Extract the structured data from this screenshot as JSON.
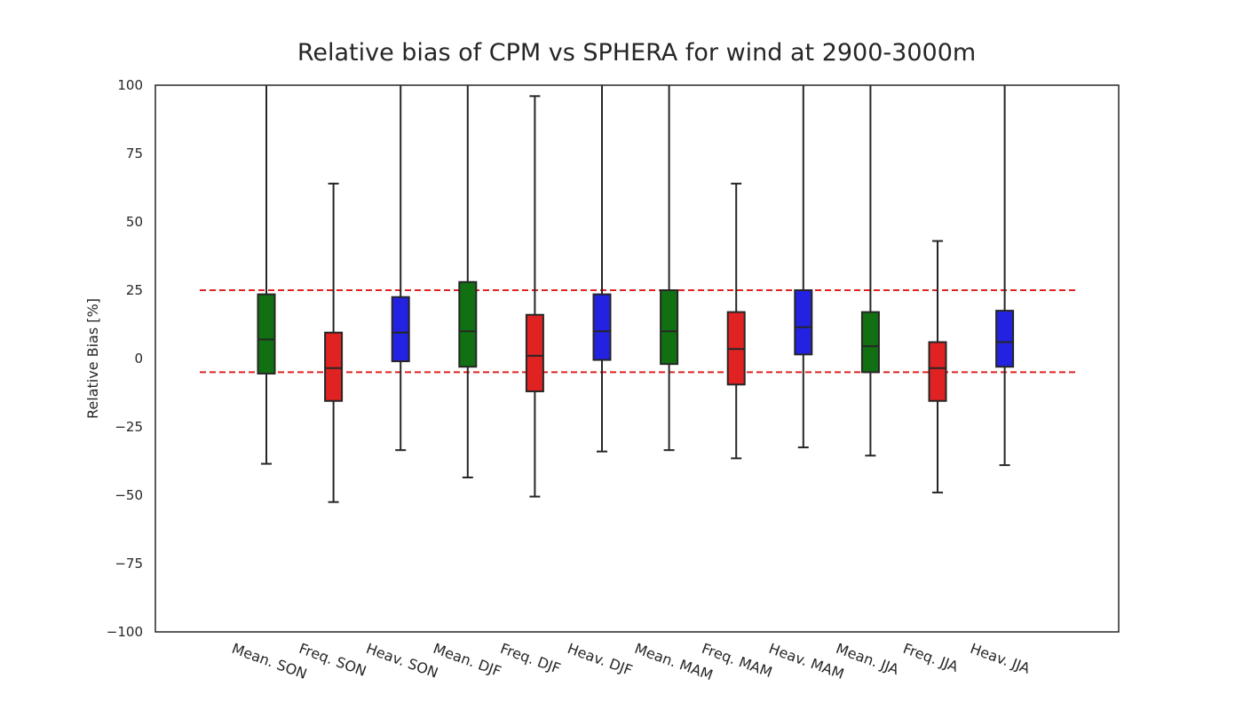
{
  "chart_data": {
    "type": "box",
    "title": "Relative bias of CPM vs SPHERA for wind at 2900-3000m",
    "xlabel": "",
    "ylabel": "Relative Bias [%]",
    "ylim": [
      -100,
      100
    ],
    "yticks": [
      100,
      75,
      50,
      25,
      0,
      -25,
      -50,
      -75,
      -100
    ],
    "ytick_labels": [
      "100",
      "75",
      "50",
      "25",
      "0",
      "−25",
      "−50",
      "−75",
      "−100"
    ],
    "grid": false,
    "categories": [
      "Mean. SON",
      "Freq. SON",
      "Heav. SON",
      "Mean. DJF",
      "Freq. DJF",
      "Heav. DJF",
      "Mean. MAM",
      "Freq. MAM",
      "Heav. MAM",
      "Mean. JJA",
      "Freq. JJA",
      "Heav. JJA"
    ],
    "box_colors": [
      "#117011",
      "#e02222",
      "#2222e0",
      "#117011",
      "#e02222",
      "#2222e0",
      "#117011",
      "#e02222",
      "#2222e0",
      "#117011",
      "#e02222",
      "#2222e0"
    ],
    "boxes": [
      {
        "whisker_low": -38.5,
        "q1": -5.5,
        "median": 7,
        "q3": 23.5,
        "whisker_high": 100
      },
      {
        "whisker_low": -52.5,
        "q1": -15.5,
        "median": -3.5,
        "q3": 9.5,
        "whisker_high": 64
      },
      {
        "whisker_low": -33.5,
        "q1": -1,
        "median": 9.5,
        "q3": 22.5,
        "whisker_high": 100
      },
      {
        "whisker_low": -43.5,
        "q1": -3,
        "median": 10,
        "q3": 28,
        "whisker_high": 100
      },
      {
        "whisker_low": -50.5,
        "q1": -12,
        "median": 1,
        "q3": 16,
        "whisker_high": 96
      },
      {
        "whisker_low": -34,
        "q1": -0.5,
        "median": 10,
        "q3": 23.5,
        "whisker_high": 100
      },
      {
        "whisker_low": -33.5,
        "q1": -2,
        "median": 10,
        "q3": 25,
        "whisker_high": 100
      },
      {
        "whisker_low": -36.5,
        "q1": -9.5,
        "median": 3.5,
        "q3": 17,
        "whisker_high": 64
      },
      {
        "whisker_low": -32.5,
        "q1": 1.5,
        "median": 11.5,
        "q3": 25,
        "whisker_high": 100
      },
      {
        "whisker_low": -35.5,
        "q1": -5,
        "median": 4.5,
        "q3": 17,
        "whisker_high": 100
      },
      {
        "whisker_low": -49,
        "q1": -15.5,
        "median": -3.5,
        "q3": 6,
        "whisker_high": 43
      },
      {
        "whisker_low": -39,
        "q1": -3,
        "median": 6,
        "q3": 17.5,
        "whisker_high": 100
      }
    ],
    "reference_lines": [
      {
        "y": 25,
        "color": "#e02222",
        "style": "dashed"
      },
      {
        "y": -5,
        "color": "#e02222",
        "style": "dashed"
      }
    ]
  }
}
